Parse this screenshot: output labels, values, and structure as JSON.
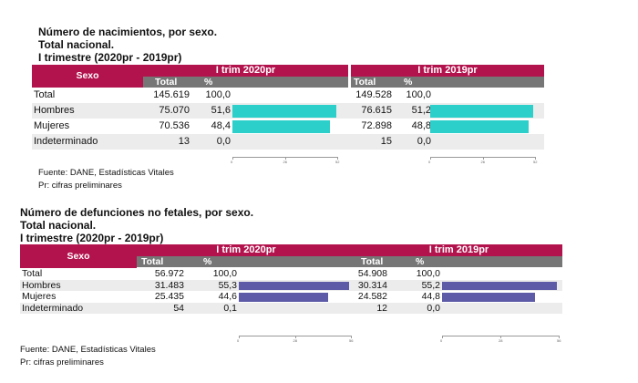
{
  "chart_data": [
    {
      "type": "table",
      "title_lines": [
        "Número de nacimientos, por sexo.",
        "Total nacional.",
        "I trimestre (2020pr - 2019pr)"
      ],
      "row_header": "Sexo",
      "periods": [
        "I trim 2020pr",
        "I trim 2019pr"
      ],
      "columns": [
        "Total",
        "%"
      ],
      "rows": [
        {
          "label": "Total",
          "values": [
            [
              "145.619",
              "100,0"
            ],
            [
              "149.528",
              "100,0"
            ]
          ],
          "pct": [
            100.0,
            100.0
          ],
          "bar": false
        },
        {
          "label": "Hombres",
          "values": [
            [
              "75.070",
              "51,6"
            ],
            [
              "76.615",
              "51,2"
            ]
          ],
          "pct": [
            51.6,
            51.2
          ],
          "bar": true
        },
        {
          "label": "Mujeres",
          "values": [
            [
              "70.536",
              "48,4"
            ],
            [
              "72.898",
              "48,8"
            ]
          ],
          "pct": [
            48.4,
            48.8
          ],
          "bar": true
        },
        {
          "label": "Indeterminado",
          "values": [
            [
              "13",
              "0,0"
            ],
            [
              "15",
              "0,0"
            ]
          ],
          "pct": [
            0.0,
            0.0
          ],
          "bar": false
        }
      ],
      "bar_scale_max": 52,
      "axis_ticks": [
        "0",
        "26",
        "52"
      ],
      "bar_color": "#2ccfc9",
      "notes": [
        "Fuente: DANE, Estadísticas Vitales",
        "Pr: cifras preliminares"
      ]
    },
    {
      "type": "table",
      "title_lines": [
        "Número de defunciones no fetales, por sexo.",
        "Total nacional.",
        "I trimestre (2020pr - 2019pr)"
      ],
      "row_header": "Sexo",
      "periods": [
        "I trim 2020pr",
        "I trim 2019pr"
      ],
      "columns": [
        "Total",
        "%"
      ],
      "rows": [
        {
          "label": "Total",
          "values": [
            [
              "56.972",
              "100,0"
            ],
            [
              "54.908",
              "100,0"
            ]
          ],
          "pct": [
            100.0,
            100.0
          ],
          "bar": false
        },
        {
          "label": "Hombres",
          "values": [
            [
              "31.483",
              "55,3"
            ],
            [
              "30.314",
              "55,2"
            ]
          ],
          "pct": [
            55.3,
            55.2
          ],
          "bar": true
        },
        {
          "label": "Mujeres",
          "values": [
            [
              "25.435",
              "44,6"
            ],
            [
              "24.582",
              "44,8"
            ]
          ],
          "pct": [
            44.6,
            44.8
          ],
          "bar": true
        },
        {
          "label": "Indeterminado",
          "values": [
            [
              "54",
              "0,1"
            ],
            [
              "12",
              "0,0"
            ]
          ],
          "pct": [
            0.1,
            0.0
          ],
          "bar": false
        }
      ],
      "bar_scale_max": 56,
      "axis_ticks": [
        "0",
        "28",
        "56"
      ],
      "bar_color": "#5d5aa8",
      "notes": [
        "Fuente: DANE, Estadísticas Vitales",
        "Pr: cifras preliminares"
      ]
    }
  ],
  "colors": {
    "header": "#b3134d",
    "subheader": "#767676",
    "row_shade": "#ececec"
  }
}
